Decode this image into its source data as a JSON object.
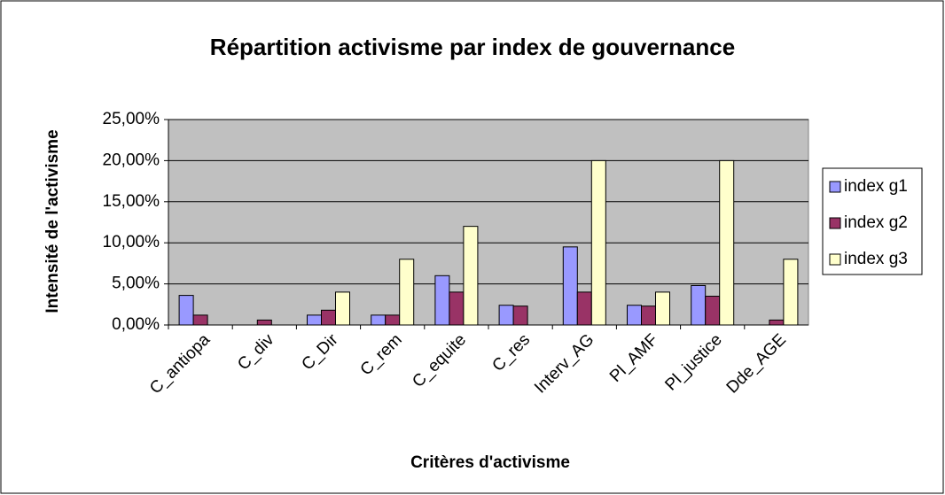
{
  "chart_data": {
    "type": "bar",
    "title": "Répartition activisme par index de gouvernance",
    "xlabel": "Critères d'activisme",
    "ylabel": "Intensité de l'activisme",
    "categories": [
      "C_antiopa",
      "C_div",
      "C_Dir",
      "C_rem",
      "C_equite",
      "C_res",
      "Interv_AG",
      "Pl_AMF",
      "Pl_justice",
      "Dde_AGE"
    ],
    "series": [
      {
        "name": "index g1",
        "color": "#9999ff",
        "values": [
          3.6,
          0,
          1.2,
          1.2,
          6,
          2.4,
          9.5,
          2.4,
          4.8,
          0
        ]
      },
      {
        "name": "index g2",
        "color": "#993366",
        "values": [
          1.2,
          0.6,
          1.8,
          1.2,
          4,
          2.3,
          4,
          2.3,
          3.5,
          0.6
        ]
      },
      {
        "name": "index g3",
        "color": "#ffffcc",
        "values": [
          0,
          0,
          4,
          8,
          12,
          0,
          20,
          4,
          20,
          8
        ]
      }
    ],
    "ylim": [
      0,
      25
    ],
    "yticks": [
      {
        "value": 0,
        "label": "0,00%"
      },
      {
        "value": 5,
        "label": "5,00%"
      },
      {
        "value": 10,
        "label": "10,00%"
      },
      {
        "value": 15,
        "label": "15,00%"
      },
      {
        "value": 20,
        "label": "20,00%"
      },
      {
        "value": 25,
        "label": "25,00%"
      }
    ],
    "grid": true,
    "legend": "right"
  }
}
